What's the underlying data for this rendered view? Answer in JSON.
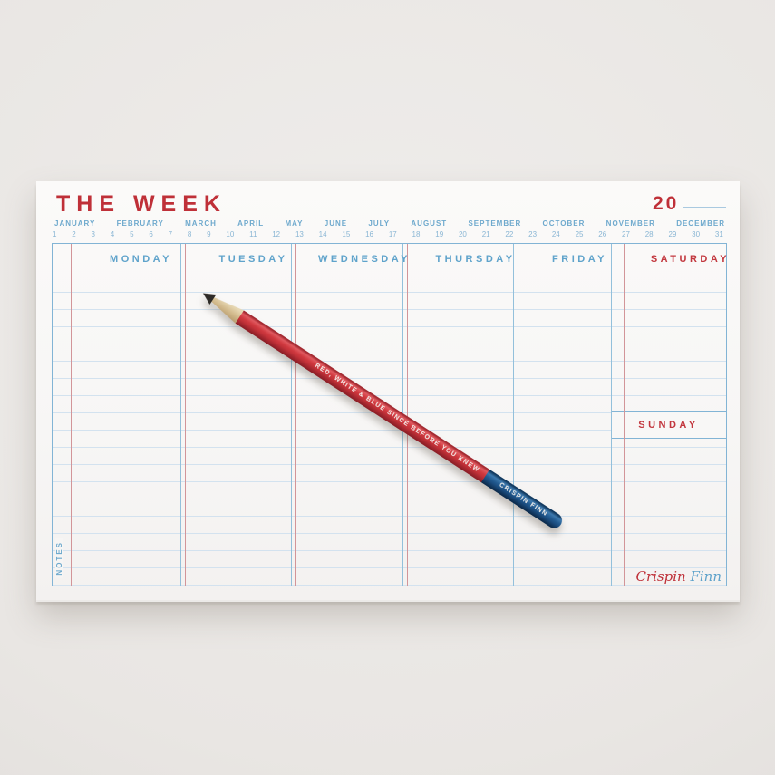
{
  "pad": {
    "title": "THE WEEK",
    "year_prefix": "20",
    "months": [
      "JANUARY",
      "FEBRUARY",
      "MARCH",
      "APRIL",
      "MAY",
      "JUNE",
      "JULY",
      "AUGUST",
      "SEPTEMBER",
      "OCTOBER",
      "NOVEMBER",
      "DECEMBER"
    ],
    "day_numbers": [
      "1",
      "2",
      "3",
      "4",
      "5",
      "6",
      "7",
      "8",
      "9",
      "10",
      "11",
      "12",
      "13",
      "14",
      "15",
      "16",
      "17",
      "18",
      "19",
      "20",
      "21",
      "22",
      "23",
      "24",
      "25",
      "26",
      "27",
      "28",
      "29",
      "30",
      "31"
    ],
    "day_columns": [
      {
        "label": "MONDAY",
        "tone": "blue"
      },
      {
        "label": "TUESDAY",
        "tone": "blue"
      },
      {
        "label": "WEDNESDAY",
        "tone": "blue"
      },
      {
        "label": "THURSDAY",
        "tone": "blue"
      },
      {
        "label": "FRIDAY",
        "tone": "blue"
      },
      {
        "label": "SATURDAY",
        "tone": "red"
      }
    ],
    "sunday_label": "SUNDAY",
    "notes_label": "NOTES",
    "signature": {
      "first": "Crispin",
      "last": "Finn"
    }
  },
  "pencil": {
    "slogan": "RED, WHITE & BLUE SINCE BEFORE YOU KNEW",
    "brand": "CRISPIN FINN"
  },
  "colors": {
    "ink_red": "#bf3038",
    "ink_blue": "#5fa3cb",
    "rule_blue": "#d3e2ef",
    "grid_blue": "#82b4d5",
    "rule_red": "#d29599",
    "pencil_red": "#c23138",
    "pencil_blue": "#21598f",
    "paper": "#f8f7f6",
    "backdrop": "#e9e6e3"
  }
}
